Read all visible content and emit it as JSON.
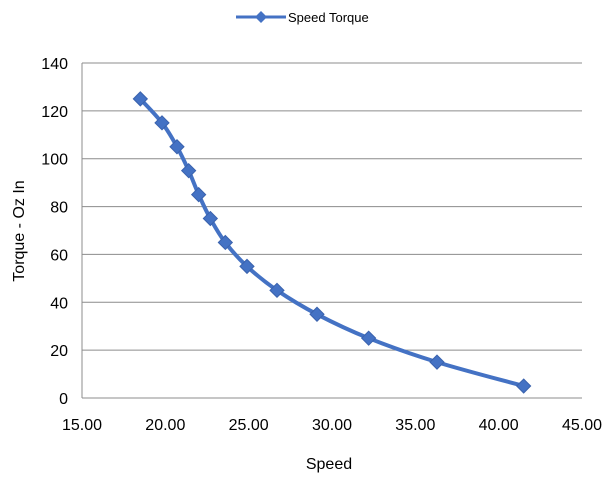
{
  "chart_data": {
    "type": "line",
    "xlabel": "Speed",
    "ylabel": "Torque - Oz In",
    "xlim": [
      15,
      45
    ],
    "ylim": [
      0,
      140
    ],
    "x_ticks": [
      "15.00",
      "20.00",
      "25.00",
      "30.00",
      "35.00",
      "40.00",
      "45.00"
    ],
    "y_ticks": [
      "0",
      "20",
      "40",
      "60",
      "80",
      "100",
      "120",
      "140"
    ],
    "grid": "horizontal",
    "legend_position": "top",
    "series": [
      {
        "name": "Speed Torque",
        "color": "#4472c4",
        "marker": "diamond",
        "smooth": true,
        "points": [
          {
            "x": 18.5,
            "y": 125
          },
          {
            "x": 19.8,
            "y": 115
          },
          {
            "x": 20.7,
            "y": 105
          },
          {
            "x": 21.4,
            "y": 95
          },
          {
            "x": 22.0,
            "y": 85
          },
          {
            "x": 22.7,
            "y": 75
          },
          {
            "x": 23.6,
            "y": 65
          },
          {
            "x": 24.9,
            "y": 55
          },
          {
            "x": 26.7,
            "y": 45
          },
          {
            "x": 29.1,
            "y": 35
          },
          {
            "x": 32.2,
            "y": 25
          },
          {
            "x": 36.3,
            "y": 15
          },
          {
            "x": 41.5,
            "y": 5
          }
        ]
      }
    ]
  }
}
